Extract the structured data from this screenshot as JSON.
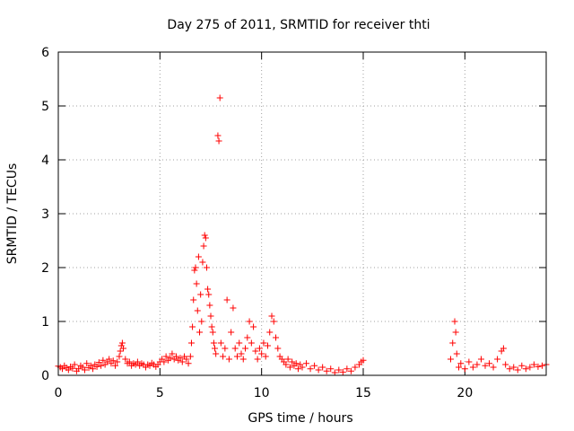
{
  "chart_data": {
    "type": "scatter",
    "title": "Day 275 of 2011, SRMTID for receiver thti",
    "xlabel": "GPS time / hours",
    "ylabel": "SRMTID / TECUs",
    "xlim": [
      0,
      24
    ],
    "ylim": [
      0,
      6
    ],
    "xticks": [
      0,
      5,
      10,
      15,
      20
    ],
    "yticks": [
      0,
      1,
      2,
      3,
      4,
      5,
      6
    ],
    "grid": true,
    "marker": "+",
    "color": "#ff0000",
    "series": [
      {
        "name": "SRMTID",
        "points": [
          [
            0.0,
            0.17
          ],
          [
            0.1,
            0.15
          ],
          [
            0.2,
            0.12
          ],
          [
            0.3,
            0.18
          ],
          [
            0.4,
            0.14
          ],
          [
            0.5,
            0.1
          ],
          [
            0.6,
            0.16
          ],
          [
            0.7,
            0.13
          ],
          [
            0.8,
            0.2
          ],
          [
            0.9,
            0.08
          ],
          [
            1.0,
            0.12
          ],
          [
            1.1,
            0.18
          ],
          [
            1.2,
            0.15
          ],
          [
            1.3,
            0.1
          ],
          [
            1.4,
            0.22
          ],
          [
            1.5,
            0.14
          ],
          [
            1.6,
            0.18
          ],
          [
            1.7,
            0.12
          ],
          [
            1.8,
            0.2
          ],
          [
            1.9,
            0.16
          ],
          [
            2.0,
            0.24
          ],
          [
            2.1,
            0.18
          ],
          [
            2.2,
            0.28
          ],
          [
            2.3,
            0.2
          ],
          [
            2.4,
            0.25
          ],
          [
            2.5,
            0.3
          ],
          [
            2.6,
            0.22
          ],
          [
            2.7,
            0.27
          ],
          [
            2.8,
            0.18
          ],
          [
            2.9,
            0.25
          ],
          [
            3.0,
            0.35
          ],
          [
            3.05,
            0.45
          ],
          [
            3.1,
            0.55
          ],
          [
            3.15,
            0.6
          ],
          [
            3.2,
            0.5
          ],
          [
            3.3,
            0.3
          ],
          [
            3.4,
            0.22
          ],
          [
            3.5,
            0.25
          ],
          [
            3.6,
            0.18
          ],
          [
            3.7,
            0.22
          ],
          [
            3.8,
            0.2
          ],
          [
            3.9,
            0.25
          ],
          [
            4.0,
            0.18
          ],
          [
            4.1,
            0.22
          ],
          [
            4.2,
            0.2
          ],
          [
            4.3,
            0.15
          ],
          [
            4.4,
            0.2
          ],
          [
            4.5,
            0.18
          ],
          [
            4.6,
            0.23
          ],
          [
            4.7,
            0.2
          ],
          [
            4.8,
            0.16
          ],
          [
            4.9,
            0.2
          ],
          [
            5.0,
            0.25
          ],
          [
            5.1,
            0.3
          ],
          [
            5.2,
            0.25
          ],
          [
            5.3,
            0.35
          ],
          [
            5.4,
            0.28
          ],
          [
            5.5,
            0.32
          ],
          [
            5.6,
            0.4
          ],
          [
            5.7,
            0.3
          ],
          [
            5.8,
            0.35
          ],
          [
            5.9,
            0.28
          ],
          [
            6.0,
            0.32
          ],
          [
            6.1,
            0.25
          ],
          [
            6.2,
            0.35
          ],
          [
            6.3,
            0.3
          ],
          [
            6.4,
            0.22
          ],
          [
            6.5,
            0.35
          ],
          [
            6.55,
            0.6
          ],
          [
            6.6,
            0.9
          ],
          [
            6.65,
            1.4
          ],
          [
            6.7,
            1.95
          ],
          [
            6.75,
            2.0
          ],
          [
            6.8,
            1.7
          ],
          [
            6.85,
            1.2
          ],
          [
            6.9,
            2.2
          ],
          [
            6.95,
            0.8
          ],
          [
            7.0,
            1.5
          ],
          [
            7.05,
            1.0
          ],
          [
            7.1,
            2.1
          ],
          [
            7.15,
            2.4
          ],
          [
            7.2,
            2.6
          ],
          [
            7.25,
            2.55
          ],
          [
            7.3,
            2.0
          ],
          [
            7.35,
            1.6
          ],
          [
            7.4,
            1.5
          ],
          [
            7.45,
            1.3
          ],
          [
            7.5,
            1.1
          ],
          [
            7.55,
            0.9
          ],
          [
            7.6,
            0.8
          ],
          [
            7.65,
            0.6
          ],
          [
            7.7,
            0.5
          ],
          [
            7.75,
            0.4
          ],
          [
            7.85,
            4.45
          ],
          [
            7.9,
            4.35
          ],
          [
            7.95,
            5.15
          ],
          [
            8.0,
            0.6
          ],
          [
            8.1,
            0.35
          ],
          [
            8.2,
            0.5
          ],
          [
            8.3,
            1.4
          ],
          [
            8.4,
            0.3
          ],
          [
            8.5,
            0.8
          ],
          [
            8.6,
            1.25
          ],
          [
            8.7,
            0.5
          ],
          [
            8.8,
            0.35
          ],
          [
            8.9,
            0.6
          ],
          [
            9.0,
            0.4
          ],
          [
            9.1,
            0.3
          ],
          [
            9.2,
            0.5
          ],
          [
            9.3,
            0.7
          ],
          [
            9.4,
            1.0
          ],
          [
            9.5,
            0.6
          ],
          [
            9.6,
            0.9
          ],
          [
            9.7,
            0.45
          ],
          [
            9.8,
            0.3
          ],
          [
            9.9,
            0.5
          ],
          [
            10.0,
            0.4
          ],
          [
            10.1,
            0.6
          ],
          [
            10.2,
            0.35
          ],
          [
            10.3,
            0.55
          ],
          [
            10.4,
            0.8
          ],
          [
            10.5,
            1.1
          ],
          [
            10.6,
            1.0
          ],
          [
            10.7,
            0.7
          ],
          [
            10.8,
            0.5
          ],
          [
            10.9,
            0.35
          ],
          [
            11.0,
            0.3
          ],
          [
            11.1,
            0.25
          ],
          [
            11.2,
            0.2
          ],
          [
            11.3,
            0.3
          ],
          [
            11.4,
            0.15
          ],
          [
            11.5,
            0.25
          ],
          [
            11.6,
            0.18
          ],
          [
            11.7,
            0.22
          ],
          [
            11.8,
            0.12
          ],
          [
            11.9,
            0.2
          ],
          [
            12.0,
            0.15
          ],
          [
            12.2,
            0.22
          ],
          [
            12.4,
            0.12
          ],
          [
            12.6,
            0.18
          ],
          [
            12.8,
            0.1
          ],
          [
            13.0,
            0.15
          ],
          [
            13.2,
            0.08
          ],
          [
            13.4,
            0.12
          ],
          [
            13.6,
            0.05
          ],
          [
            13.8,
            0.1
          ],
          [
            14.0,
            0.06
          ],
          [
            14.2,
            0.12
          ],
          [
            14.4,
            0.08
          ],
          [
            14.6,
            0.15
          ],
          [
            14.8,
            0.2
          ],
          [
            14.9,
            0.25
          ],
          [
            15.0,
            0.28
          ],
          [
            19.3,
            0.3
          ],
          [
            19.4,
            0.6
          ],
          [
            19.5,
            1.0
          ],
          [
            19.55,
            0.8
          ],
          [
            19.6,
            0.4
          ],
          [
            19.7,
            0.15
          ],
          [
            19.8,
            0.22
          ],
          [
            20.0,
            0.12
          ],
          [
            20.2,
            0.25
          ],
          [
            20.4,
            0.15
          ],
          [
            20.6,
            0.2
          ],
          [
            20.8,
            0.3
          ],
          [
            21.0,
            0.18
          ],
          [
            21.2,
            0.22
          ],
          [
            21.4,
            0.15
          ],
          [
            21.6,
            0.3
          ],
          [
            21.8,
            0.45
          ],
          [
            21.9,
            0.5
          ],
          [
            22.0,
            0.2
          ],
          [
            22.2,
            0.12
          ],
          [
            22.4,
            0.15
          ],
          [
            22.6,
            0.1
          ],
          [
            22.8,
            0.18
          ],
          [
            23.0,
            0.12
          ],
          [
            23.2,
            0.15
          ],
          [
            23.4,
            0.2
          ],
          [
            23.6,
            0.16
          ],
          [
            23.8,
            0.18
          ],
          [
            24.0,
            0.2
          ]
        ]
      }
    ]
  }
}
